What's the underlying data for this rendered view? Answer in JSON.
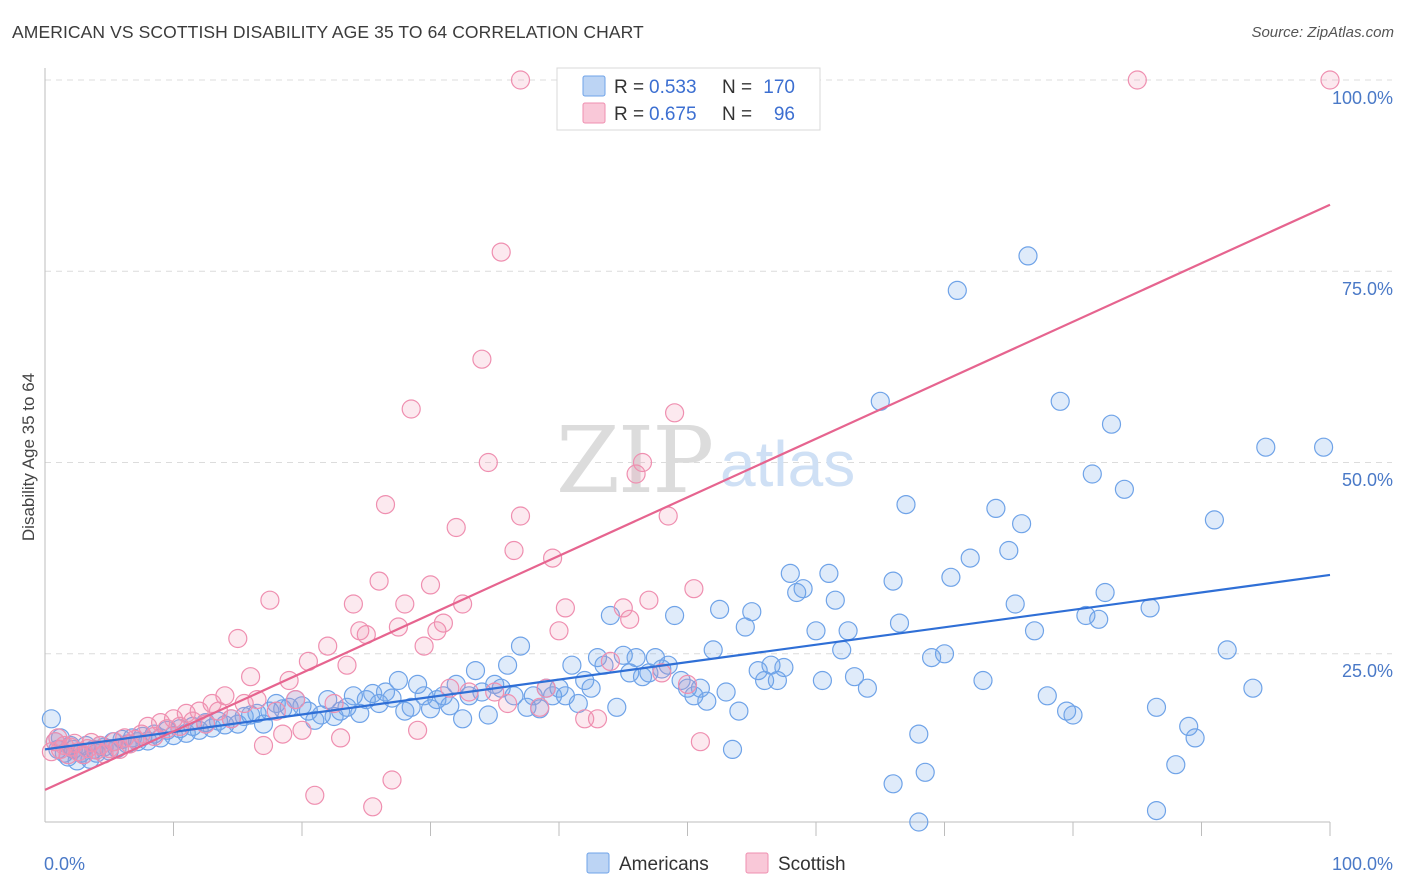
{
  "title": "AMERICAN VS SCOTTISH DISABILITY AGE 35 TO 64 CORRELATION CHART",
  "source": "Source: ZipAtlas.com",
  "watermark": {
    "zip": "ZIP",
    "atlas": "atlas"
  },
  "legend": {
    "r_label": "R =",
    "n_label": "N =",
    "rows": [
      {
        "r": "0.533",
        "n": "170",
        "color": "#6fa3e8"
      },
      {
        "r": "0.675",
        "n": "96",
        "color": "#ef8fb0"
      }
    ]
  },
  "bottom_legend": [
    {
      "label": "Americans",
      "color": "#6fa3e8"
    },
    {
      "label": "Scottish",
      "color": "#ef8fb0"
    }
  ],
  "chart_data": {
    "type": "scatter",
    "ylabel": "Disability Age 35 to 64",
    "xlim": [
      0,
      100
    ],
    "ylim": [
      0,
      100
    ],
    "x_tick_labels": [
      "0.0%",
      "100.0%"
    ],
    "y_tick_labels": [
      "25.0%",
      "50.0%",
      "75.0%",
      "100.0%"
    ],
    "y_ticks": [
      25,
      50,
      75,
      100
    ],
    "grid": true,
    "series": [
      {
        "name": "Americans",
        "color": "#6fa3e8",
        "line_color": "#2f6fd6",
        "trend": {
          "x": [
            0,
            100
          ],
          "y": [
            12.5,
            35.3
          ]
        },
        "points": [
          [
            0.5,
            16.5
          ],
          [
            0.8,
            13.5
          ],
          [
            1,
            12.5
          ],
          [
            1.2,
            14
          ],
          [
            1.5,
            12
          ],
          [
            1.8,
            11.5
          ],
          [
            2,
            13
          ],
          [
            2.2,
            12.5
          ],
          [
            2.5,
            11
          ],
          [
            2.8,
            12
          ],
          [
            3,
            11.8
          ],
          [
            3.2,
            13
          ],
          [
            3.5,
            11.2
          ],
          [
            3.8,
            12.5
          ],
          [
            4,
            12
          ],
          [
            4.3,
            13
          ],
          [
            4.6,
            12.8
          ],
          [
            5,
            12.3
          ],
          [
            5.3,
            13.5
          ],
          [
            5.6,
            12.6
          ],
          [
            6,
            13.8
          ],
          [
            6.4,
            13.2
          ],
          [
            6.8,
            14
          ],
          [
            7.2,
            13.5
          ],
          [
            7.6,
            14.2
          ],
          [
            8,
            13.6
          ],
          [
            8.5,
            14.5
          ],
          [
            9,
            14
          ],
          [
            9.5,
            15
          ],
          [
            10,
            14.3
          ],
          [
            10.5,
            15.2
          ],
          [
            11,
            14.6
          ],
          [
            11.5,
            15.5
          ],
          [
            12,
            15
          ],
          [
            12.5,
            16
          ],
          [
            13,
            15.3
          ],
          [
            13.5,
            16.2
          ],
          [
            14,
            15.7
          ],
          [
            14.5,
            16.5
          ],
          [
            15,
            15.8
          ],
          [
            15.5,
            16.8
          ],
          [
            16,
            17
          ],
          [
            16.5,
            17.2
          ],
          [
            17,
            15.8
          ],
          [
            17.5,
            17.5
          ],
          [
            18,
            18.5
          ],
          [
            18.5,
            17.8
          ],
          [
            19,
            18
          ],
          [
            19.5,
            19
          ],
          [
            20,
            18.2
          ],
          [
            20.5,
            17.5
          ],
          [
            21,
            16.3
          ],
          [
            21.5,
            17
          ],
          [
            22,
            19
          ],
          [
            22.5,
            16.8
          ],
          [
            23,
            17.5
          ],
          [
            23.5,
            18
          ],
          [
            24,
            19.5
          ],
          [
            24.5,
            17.2
          ],
          [
            25,
            19
          ],
          [
            25.5,
            19.8
          ],
          [
            26,
            18.5
          ],
          [
            26.5,
            20
          ],
          [
            27,
            19.2
          ],
          [
            27.5,
            21.5
          ],
          [
            28,
            17.5
          ],
          [
            28.5,
            18
          ],
          [
            29,
            21
          ],
          [
            29.5,
            19.5
          ],
          [
            30,
            17.8
          ],
          [
            30.5,
            19
          ],
          [
            31,
            19.5
          ],
          [
            31.5,
            18.2
          ],
          [
            32,
            21
          ],
          [
            32.5,
            16.5
          ],
          [
            33,
            19.5
          ],
          [
            33.5,
            22.8
          ],
          [
            34,
            20
          ],
          [
            34.5,
            17
          ],
          [
            35,
            21
          ],
          [
            35.5,
            20.5
          ],
          [
            36,
            23.5
          ],
          [
            36.5,
            19.5
          ],
          [
            37,
            26
          ],
          [
            37.5,
            18
          ],
          [
            38,
            19.5
          ],
          [
            38.5,
            17.8
          ],
          [
            39,
            20.5
          ],
          [
            39.5,
            19.5
          ],
          [
            40,
            20.5
          ],
          [
            40.5,
            19.5
          ],
          [
            41,
            23.5
          ],
          [
            41.5,
            18.5
          ],
          [
            42,
            21.5
          ],
          [
            42.5,
            20.5
          ],
          [
            43,
            24.5
          ],
          [
            43.5,
            23.5
          ],
          [
            44,
            30
          ],
          [
            44.5,
            18
          ],
          [
            45,
            24.8
          ],
          [
            45.5,
            22.5
          ],
          [
            46,
            24.5
          ],
          [
            46.5,
            22
          ],
          [
            47,
            22.5
          ],
          [
            47.5,
            24.5
          ],
          [
            48,
            23
          ],
          [
            48.5,
            23.5
          ],
          [
            49,
            30
          ],
          [
            49.5,
            21.5
          ],
          [
            50,
            20.5
          ],
          [
            50.5,
            19.5
          ],
          [
            51,
            20.5
          ],
          [
            51.5,
            18.8
          ],
          [
            52,
            25.5
          ],
          [
            52.5,
            30.8
          ],
          [
            53,
            20
          ],
          [
            53.5,
            12.5
          ],
          [
            54,
            17.5
          ],
          [
            54.5,
            28.5
          ],
          [
            55,
            30.5
          ],
          [
            55.5,
            22.8
          ],
          [
            56,
            21.5
          ],
          [
            56.5,
            23.5
          ],
          [
            57,
            21.5
          ],
          [
            57.5,
            23.2
          ],
          [
            58,
            35.5
          ],
          [
            58.5,
            33
          ],
          [
            59,
            33.5
          ],
          [
            60,
            28
          ],
          [
            60.5,
            21.5
          ],
          [
            61,
            35.5
          ],
          [
            61.5,
            32
          ],
          [
            62,
            25.5
          ],
          [
            62.5,
            28
          ],
          [
            63,
            22
          ],
          [
            64,
            20.5
          ],
          [
            65,
            58
          ],
          [
            66,
            34.5
          ],
          [
            66.5,
            29
          ],
          [
            67,
            44.5
          ],
          [
            68,
            14.5
          ],
          [
            68.5,
            9.5
          ],
          [
            69,
            24.5
          ],
          [
            70,
            25
          ],
          [
            70.5,
            35
          ],
          [
            71,
            72.5
          ],
          [
            72,
            37.5
          ],
          [
            73,
            21.5
          ],
          [
            74,
            44
          ],
          [
            75,
            38.5
          ],
          [
            75.5,
            31.5
          ],
          [
            76,
            42
          ],
          [
            76.5,
            77
          ],
          [
            77,
            28
          ],
          [
            78,
            19.5
          ],
          [
            79,
            58
          ],
          [
            79.5,
            17.5
          ],
          [
            80,
            17
          ],
          [
            81,
            30
          ],
          [
            81.5,
            48.5
          ],
          [
            82,
            29.5
          ],
          [
            82.5,
            33
          ],
          [
            83,
            55
          ],
          [
            84,
            46.5
          ],
          [
            86,
            31
          ],
          [
            86.5,
            18
          ],
          [
            88,
            10.5
          ],
          [
            89,
            15.5
          ],
          [
            89.5,
            14
          ],
          [
            91,
            42.5
          ],
          [
            92,
            25.5
          ],
          [
            94,
            20.5
          ],
          [
            95,
            52
          ],
          [
            66,
            8
          ],
          [
            68,
            3
          ],
          [
            86.5,
            4.5
          ],
          [
            99.5,
            52
          ]
        ]
      },
      {
        "name": "Scottish",
        "color": "#ef8fb0",
        "line_color": "#e6648f",
        "trend": {
          "x": [
            0,
            100
          ],
          "y": [
            7.2,
            83.7
          ]
        },
        "points": [
          [
            0.5,
            12.2
          ],
          [
            0.8,
            13.5
          ],
          [
            1,
            14
          ],
          [
            1.2,
            12.5
          ],
          [
            1.5,
            13
          ],
          [
            1.8,
            11.8
          ],
          [
            2,
            12.8
          ],
          [
            2.3,
            13.3
          ],
          [
            2.6,
            12.2
          ],
          [
            3,
            11.8
          ],
          [
            3.3,
            12.6
          ],
          [
            3.6,
            13.4
          ],
          [
            4,
            12.4
          ],
          [
            4.3,
            13
          ],
          [
            4.6,
            11.9
          ],
          [
            5,
            12.6
          ],
          [
            5.4,
            13.5
          ],
          [
            5.8,
            12.5
          ],
          [
            6.2,
            14
          ],
          [
            6.6,
            13.2
          ],
          [
            7,
            13.8
          ],
          [
            7.5,
            14.5
          ],
          [
            8,
            15.5
          ],
          [
            8.5,
            14.2
          ],
          [
            9,
            16
          ],
          [
            9.5,
            15.2
          ],
          [
            10,
            16.5
          ],
          [
            10.5,
            15.5
          ],
          [
            11,
            17.2
          ],
          [
            11.5,
            16.2
          ],
          [
            12,
            17.5
          ],
          [
            12.5,
            15.8
          ],
          [
            13,
            18.5
          ],
          [
            13.5,
            17.5
          ],
          [
            14,
            19.5
          ],
          [
            14.5,
            16.5
          ],
          [
            15,
            27
          ],
          [
            15.5,
            18.5
          ],
          [
            16,
            22
          ],
          [
            16.5,
            19
          ],
          [
            17,
            13
          ],
          [
            17.5,
            32
          ],
          [
            18,
            17.5
          ],
          [
            18.5,
            14.5
          ],
          [
            19,
            21.5
          ],
          [
            19.5,
            19
          ],
          [
            20,
            15
          ],
          [
            20.5,
            24
          ],
          [
            21,
            6.5
          ],
          [
            22,
            26
          ],
          [
            22.5,
            18.5
          ],
          [
            23,
            14
          ],
          [
            23.5,
            23.5
          ],
          [
            24,
            31.5
          ],
          [
            24.5,
            28
          ],
          [
            25,
            27.5
          ],
          [
            25.5,
            5
          ],
          [
            26,
            34.5
          ],
          [
            26.5,
            44.5
          ],
          [
            27,
            8.5
          ],
          [
            27.5,
            28.5
          ],
          [
            28,
            31.5
          ],
          [
            28.5,
            57
          ],
          [
            29,
            15
          ],
          [
            29.5,
            26
          ],
          [
            30,
            34
          ],
          [
            30.5,
            28
          ],
          [
            31,
            29
          ],
          [
            31.5,
            20.5
          ],
          [
            32,
            41.5
          ],
          [
            32.5,
            31.5
          ],
          [
            33,
            20
          ],
          [
            34,
            63.5
          ],
          [
            34.5,
            50
          ],
          [
            35,
            20
          ],
          [
            35.5,
            77.5
          ],
          [
            36,
            18.5
          ],
          [
            36.5,
            38.5
          ],
          [
            37,
            43
          ],
          [
            38.5,
            18
          ],
          [
            39,
            20.5
          ],
          [
            39.5,
            37.5
          ],
          [
            40,
            28
          ],
          [
            40.5,
            31
          ],
          [
            42,
            16.5
          ],
          [
            43,
            16.5
          ],
          [
            44,
            24
          ],
          [
            45,
            31
          ],
          [
            45.5,
            29.5
          ],
          [
            46,
            48.5
          ],
          [
            46.5,
            50
          ],
          [
            47,
            32
          ],
          [
            48,
            22.5
          ],
          [
            48.5,
            43
          ],
          [
            49,
            56.5
          ],
          [
            50,
            21
          ],
          [
            50.5,
            33.5
          ],
          [
            51,
            13.5
          ],
          [
            37,
            100
          ],
          [
            52.5,
            100
          ],
          [
            85,
            100
          ],
          [
            100,
            100
          ]
        ]
      }
    ]
  }
}
